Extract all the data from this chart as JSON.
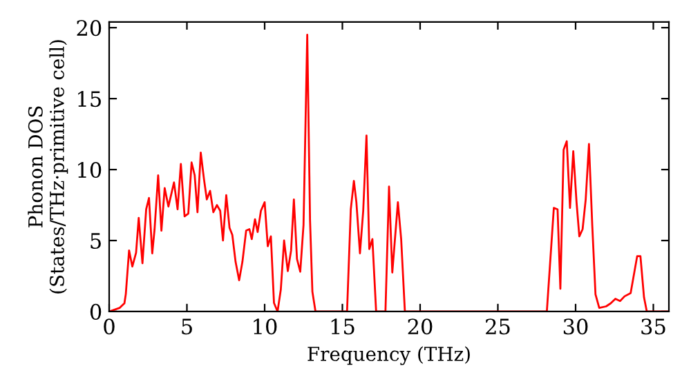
{
  "chart_data": {
    "type": "line",
    "xlabel": "Frequency (THz)",
    "ylabel": "Phonon DOS\n(States/THz·primitive cell)",
    "xlim": [
      0,
      36
    ],
    "ylim": [
      0,
      20.4
    ],
    "xticks": [
      0,
      5,
      10,
      15,
      20,
      25,
      30,
      35
    ],
    "yticks": [
      0,
      5,
      10,
      15,
      20
    ],
    "grid": false,
    "legend": false,
    "series": [
      {
        "color": "#ff0000",
        "x": [
          0,
          0.68,
          0.98,
          1.07,
          1.28,
          1.49,
          1.73,
          1.9,
          2.14,
          2.38,
          2.56,
          2.77,
          2.92,
          3.15,
          3.36,
          3.57,
          3.81,
          4.17,
          4.4,
          4.61,
          4.85,
          5.09,
          5.3,
          5.5,
          5.68,
          5.89,
          6.1,
          6.28,
          6.49,
          6.7,
          6.93,
          7.14,
          7.32,
          7.53,
          7.74,
          7.92,
          8.13,
          8.36,
          8.57,
          8.81,
          9.02,
          9.17,
          9.38,
          9.55,
          9.76,
          10.0,
          10.2,
          10.4,
          10.6,
          10.83,
          11.04,
          11.25,
          11.49,
          11.7,
          11.88,
          12.08,
          12.29,
          12.5,
          12.74,
          12.92,
          13.07,
          13.27,
          15.3,
          15.54,
          15.74,
          15.9,
          16.13,
          16.34,
          16.55,
          16.73,
          16.93,
          17.17,
          17.77,
          18.0,
          18.21,
          18.57,
          18.78,
          19.02,
          28.15,
          28.6,
          28.84,
          29.02,
          29.23,
          29.43,
          29.64,
          29.85,
          30.06,
          30.24,
          30.45,
          30.65,
          30.86,
          31.07,
          31.28,
          31.52,
          31.96,
          32.26,
          32.56,
          32.86,
          33.15,
          33.54,
          33.96,
          34.17,
          34.4,
          34.58,
          36
        ],
        "values": [
          0,
          0.26,
          0.58,
          1.23,
          4.3,
          3.17,
          4.14,
          6.6,
          3.4,
          7.2,
          8.0,
          4.1,
          5.8,
          9.6,
          5.7,
          8.7,
          7.4,
          9.1,
          7.2,
          10.4,
          6.7,
          6.9,
          10.5,
          9.6,
          7.0,
          11.2,
          9.3,
          7.9,
          8.5,
          7.0,
          7.5,
          7.1,
          5.0,
          8.2,
          5.9,
          5.4,
          3.5,
          2.2,
          3.5,
          5.7,
          5.8,
          5.1,
          6.5,
          5.6,
          7.1,
          7.7,
          4.6,
          5.3,
          0.6,
          0,
          1.55,
          5.0,
          2.85,
          4.3,
          7.9,
          3.7,
          2.8,
          6.1,
          19.5,
          6.4,
          1.4,
          0,
          0,
          7.2,
          9.2,
          7.7,
          4.1,
          7.1,
          12.4,
          4.4,
          5.1,
          0,
          0,
          8.8,
          2.75,
          7.7,
          5.1,
          0,
          0,
          7.3,
          7.2,
          1.6,
          11.4,
          12.0,
          7.3,
          11.3,
          7.7,
          5.3,
          5.8,
          7.9,
          11.8,
          6.1,
          1.2,
          0.26,
          0.36,
          0.58,
          0.9,
          0.74,
          1.07,
          1.3,
          3.9,
          3.9,
          1.0,
          0,
          0
        ]
      }
    ]
  }
}
